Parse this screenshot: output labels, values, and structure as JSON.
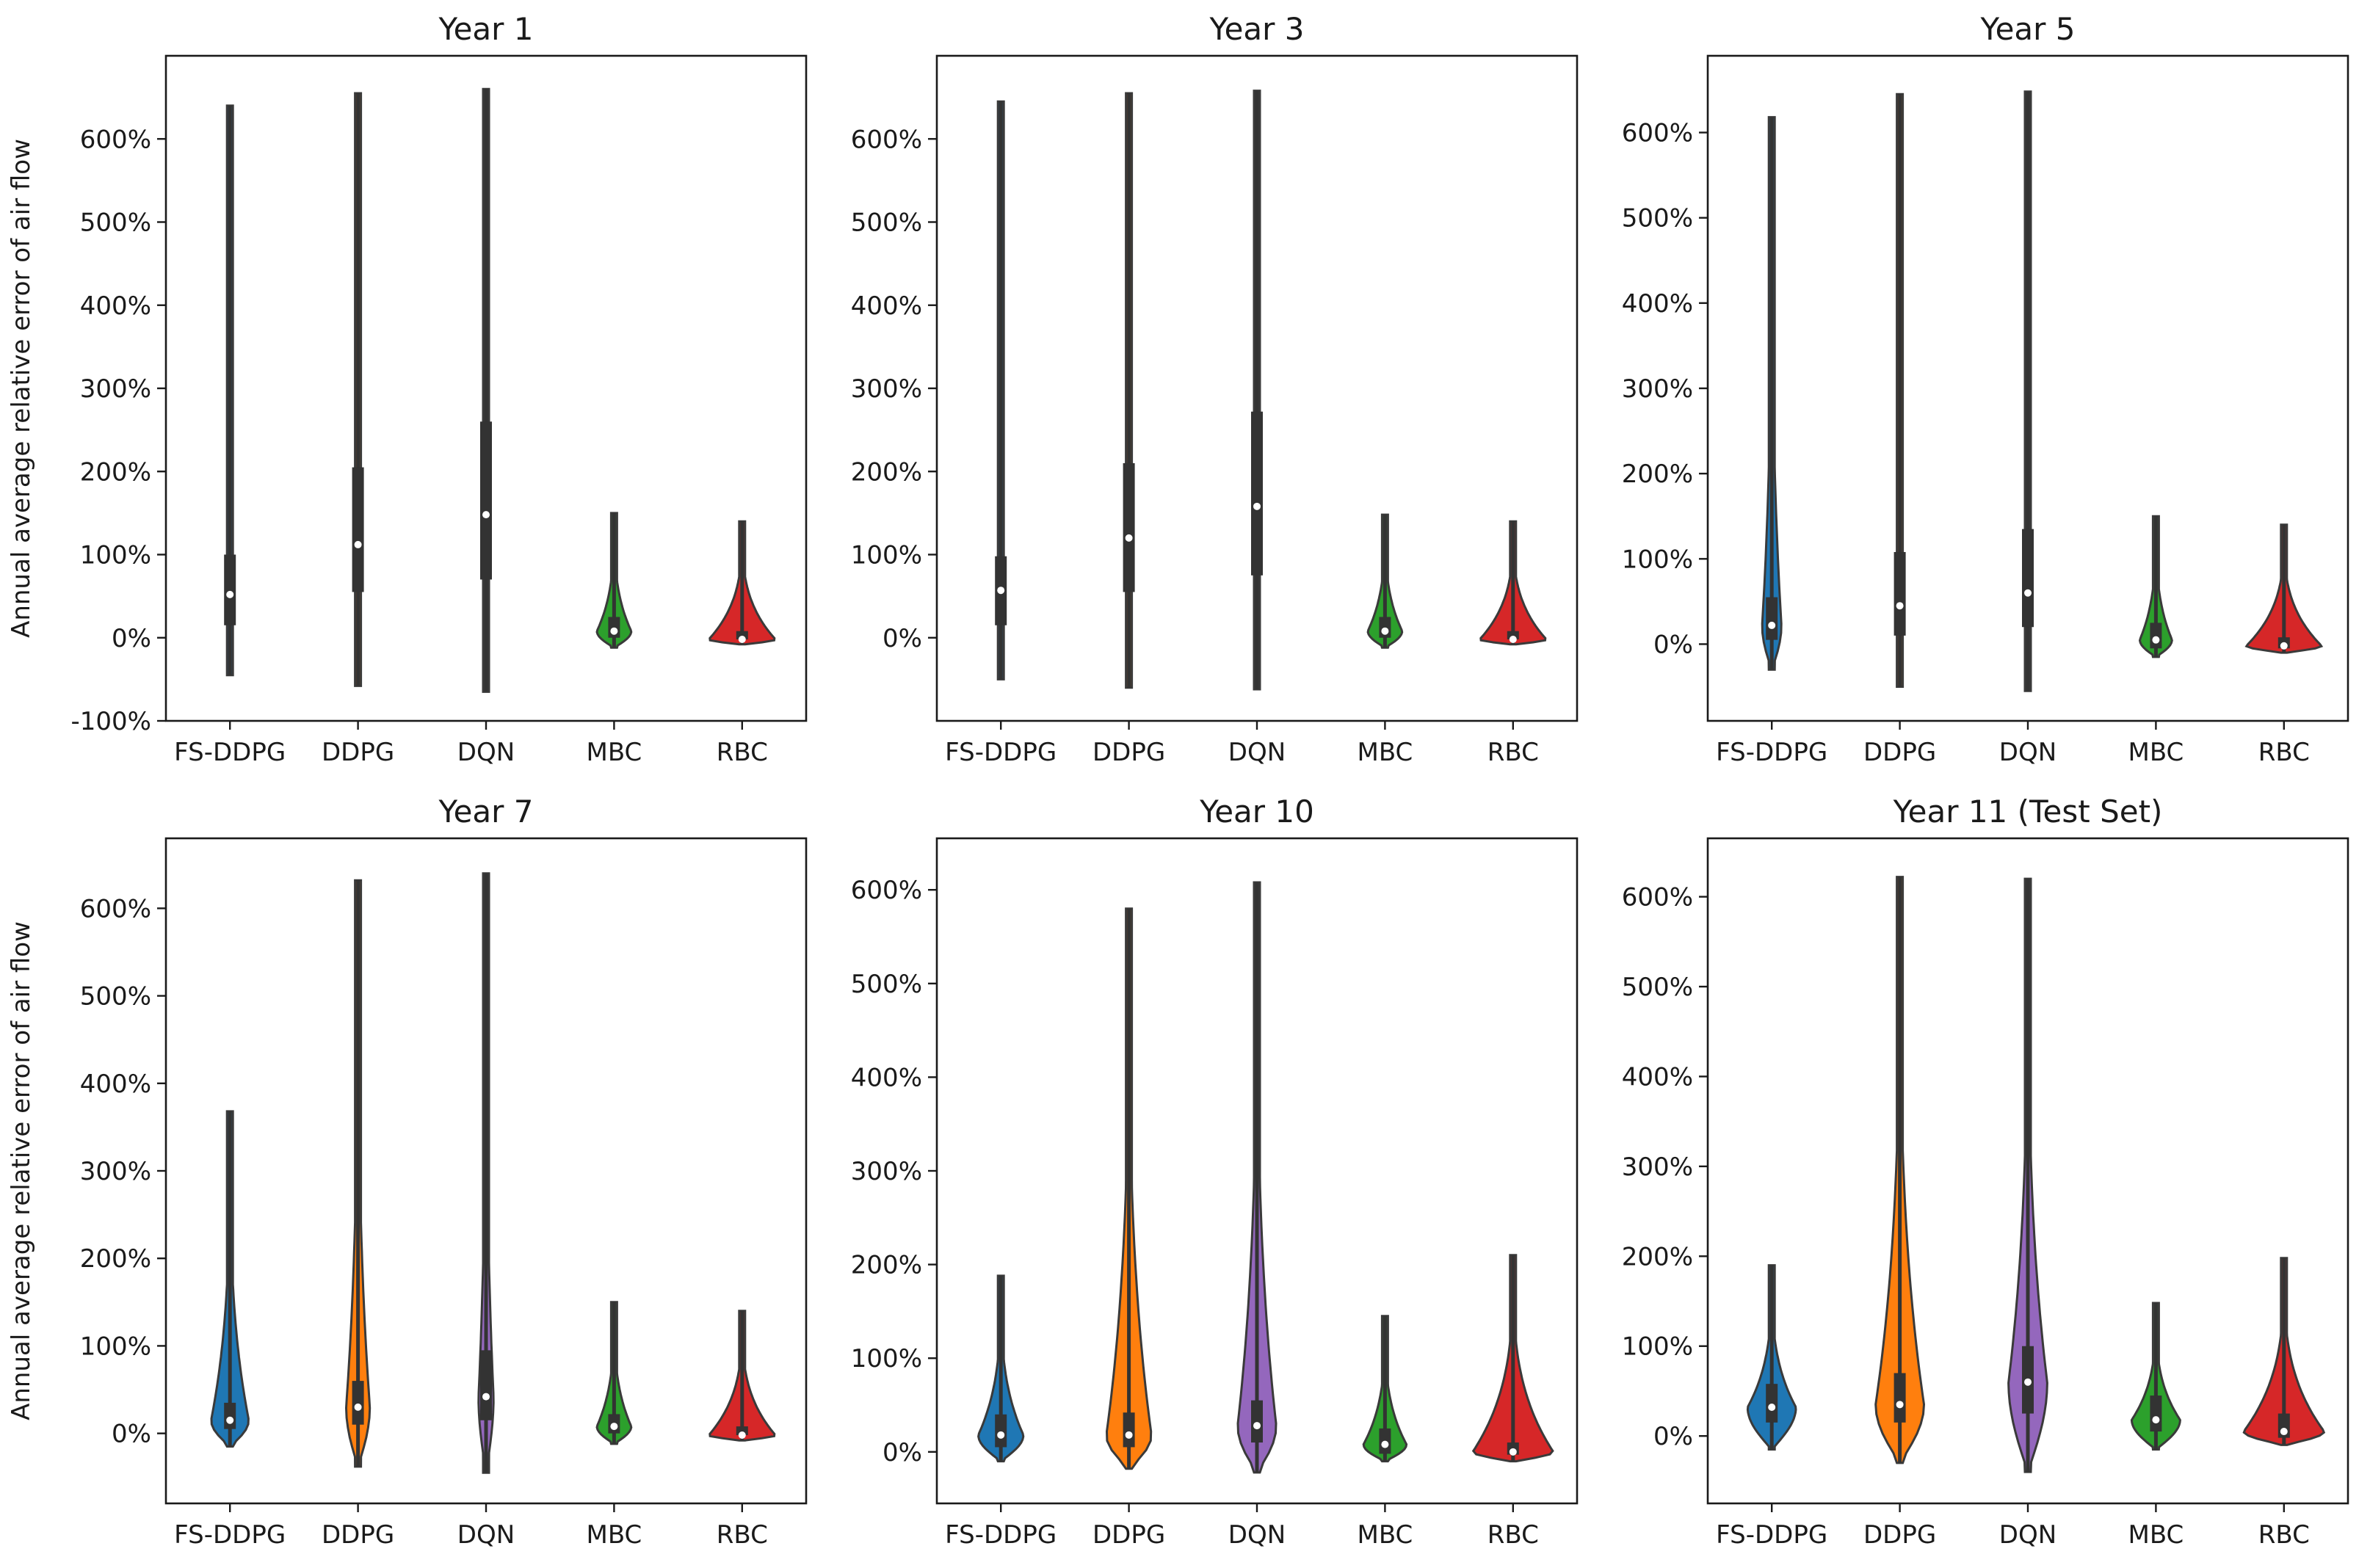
{
  "figure": {
    "ylabel": "Annual average relative error of air flow"
  },
  "chart_data": [
    {
      "type": "violin",
      "title": "Year 1",
      "ylabel": "Annual average relative error of air flow",
      "categories": [
        "FS-DDPG",
        "DDPG",
        "DQN",
        "MBC",
        "RBC"
      ],
      "colors": [
        "#1f77b4",
        "#ff7f0e",
        "#9467bd",
        "#2ca02c",
        "#d62728"
      ],
      "ylim": [
        -100,
        700
      ],
      "yticks": [
        -100,
        0,
        100,
        200,
        300,
        400,
        500,
        600
      ],
      "ytick_labels": [
        "-100%",
        "0%",
        "100%",
        "200%",
        "300%",
        "400%",
        "500%",
        "600%"
      ],
      "series": [
        {
          "name": "FS-DDPG",
          "min": -45,
          "max": 640,
          "q1": 15,
          "median": 52,
          "q3": 100,
          "width": 0.05
        },
        {
          "name": "DDPG",
          "min": -58,
          "max": 655,
          "q1": 55,
          "median": 112,
          "q3": 205,
          "width": 0.04
        },
        {
          "name": "DQN",
          "min": -65,
          "max": 660,
          "q1": 70,
          "median": 148,
          "q3": 260,
          "width": 0.04
        },
        {
          "name": "MBC",
          "min": -12,
          "max": 150,
          "q1": 0,
          "median": 8,
          "q3": 25,
          "width": 0.32
        },
        {
          "name": "RBC",
          "min": -8,
          "max": 140,
          "q1": -2,
          "median": -2,
          "q3": 8,
          "width": 0.62
        }
      ]
    },
    {
      "type": "violin",
      "title": "Year 3",
      "ylabel": "",
      "categories": [
        "FS-DDPG",
        "DDPG",
        "DQN",
        "MBC",
        "RBC"
      ],
      "colors": [
        "#1f77b4",
        "#ff7f0e",
        "#9467bd",
        "#2ca02c",
        "#d62728"
      ],
      "ylim": [
        -100,
        700
      ],
      "yticks": [
        0,
        100,
        200,
        300,
        400,
        500,
        600
      ],
      "ytick_labels": [
        "0%",
        "100%",
        "200%",
        "300%",
        "400%",
        "500%",
        "600%"
      ],
      "series": [
        {
          "name": "FS-DDPG",
          "min": -50,
          "max": 645,
          "q1": 15,
          "median": 57,
          "q3": 98,
          "width": 0.05
        },
        {
          "name": "DDPG",
          "min": -60,
          "max": 655,
          "q1": 55,
          "median": 120,
          "q3": 210,
          "width": 0.04
        },
        {
          "name": "DQN",
          "min": -62,
          "max": 658,
          "q1": 75,
          "median": 158,
          "q3": 272,
          "width": 0.04
        },
        {
          "name": "MBC",
          "min": -12,
          "max": 148,
          "q1": 0,
          "median": 8,
          "q3": 25,
          "width": 0.32
        },
        {
          "name": "RBC",
          "min": -8,
          "max": 140,
          "q1": -2,
          "median": -2,
          "q3": 8,
          "width": 0.62
        }
      ]
    },
    {
      "type": "violin",
      "title": "Year 5",
      "ylabel": "",
      "categories": [
        "FS-DDPG",
        "DDPG",
        "DQN",
        "MBC",
        "RBC"
      ],
      "colors": [
        "#1f77b4",
        "#ff7f0e",
        "#9467bd",
        "#2ca02c",
        "#d62728"
      ],
      "ylim": [
        -90,
        690
      ],
      "yticks": [
        0,
        100,
        200,
        300,
        400,
        500,
        600
      ],
      "ytick_labels": [
        "0%",
        "100%",
        "200%",
        "300%",
        "400%",
        "500%",
        "600%"
      ],
      "series": [
        {
          "name": "FS-DDPG",
          "min": -30,
          "max": 618,
          "q1": 5,
          "median": 22,
          "q3": 55,
          "width": 0.18
        },
        {
          "name": "DDPG",
          "min": -50,
          "max": 645,
          "q1": 10,
          "median": 45,
          "q3": 108,
          "width": 0.06
        },
        {
          "name": "DQN",
          "min": -55,
          "max": 648,
          "q1": 20,
          "median": 60,
          "q3": 135,
          "width": 0.05
        },
        {
          "name": "MBC",
          "min": -15,
          "max": 150,
          "q1": -5,
          "median": 5,
          "q3": 25,
          "width": 0.3
        },
        {
          "name": "RBC",
          "min": -10,
          "max": 140,
          "q1": -5,
          "median": -2,
          "q3": 8,
          "width": 0.7
        }
      ]
    },
    {
      "type": "violin",
      "title": "Year 7",
      "ylabel": "Annual average relative error of air flow",
      "categories": [
        "FS-DDPG",
        "DDPG",
        "DQN",
        "MBC",
        "RBC"
      ],
      "colors": [
        "#1f77b4",
        "#ff7f0e",
        "#9467bd",
        "#2ca02c",
        "#d62728"
      ],
      "ylim": [
        -80,
        680
      ],
      "yticks": [
        0,
        100,
        200,
        300,
        400,
        500,
        600
      ],
      "ytick_labels": [
        "0%",
        "100%",
        "200%",
        "300%",
        "400%",
        "500%",
        "600%"
      ],
      "series": [
        {
          "name": "FS-DDPG",
          "min": -15,
          "max": 368,
          "q1": 5,
          "median": 15,
          "q3": 35,
          "width": 0.35
        },
        {
          "name": "DDPG",
          "min": -38,
          "max": 632,
          "q1": 10,
          "median": 30,
          "q3": 60,
          "width": 0.22
        },
        {
          "name": "DQN",
          "min": -45,
          "max": 640,
          "q1": 15,
          "median": 42,
          "q3": 95,
          "width": 0.14
        },
        {
          "name": "MBC",
          "min": -12,
          "max": 150,
          "q1": 0,
          "median": 8,
          "q3": 22,
          "width": 0.32
        },
        {
          "name": "RBC",
          "min": -8,
          "max": 140,
          "q1": -2,
          "median": -2,
          "q3": 8,
          "width": 0.62
        }
      ]
    },
    {
      "type": "violin",
      "title": "Year 10",
      "ylabel": "",
      "categories": [
        "FS-DDPG",
        "DDPG",
        "DQN",
        "MBC",
        "RBC"
      ],
      "colors": [
        "#1f77b4",
        "#ff7f0e",
        "#9467bd",
        "#2ca02c",
        "#d62728"
      ],
      "ylim": [
        -55,
        655
      ],
      "yticks": [
        0,
        100,
        200,
        300,
        400,
        500,
        600
      ],
      "ytick_labels": [
        "0%",
        "100%",
        "200%",
        "300%",
        "400%",
        "500%",
        "600%"
      ],
      "series": [
        {
          "name": "FS-DDPG",
          "min": -10,
          "max": 188,
          "q1": 5,
          "median": 18,
          "q3": 40,
          "width": 0.42
        },
        {
          "name": "DDPG",
          "min": -18,
          "max": 580,
          "q1": 5,
          "median": 18,
          "q3": 42,
          "width": 0.42
        },
        {
          "name": "DQN",
          "min": -22,
          "max": 608,
          "q1": 10,
          "median": 28,
          "q3": 55,
          "width": 0.36
        },
        {
          "name": "MBC",
          "min": -10,
          "max": 145,
          "q1": -2,
          "median": 8,
          "q3": 25,
          "width": 0.4
        },
        {
          "name": "RBC",
          "min": -10,
          "max": 210,
          "q1": -3,
          "median": 0,
          "q3": 10,
          "width": 0.75
        }
      ]
    },
    {
      "type": "violin",
      "title": "Year 11 (Test Set)",
      "ylabel": "",
      "categories": [
        "FS-DDPG",
        "DDPG",
        "DQN",
        "MBC",
        "RBC"
      ],
      "colors": [
        "#1f77b4",
        "#ff7f0e",
        "#9467bd",
        "#2ca02c",
        "#d62728"
      ],
      "ylim": [
        -75,
        665
      ],
      "yticks": [
        0,
        100,
        200,
        300,
        400,
        500,
        600
      ],
      "ytick_labels": [
        "0%",
        "100%",
        "200%",
        "300%",
        "400%",
        "500%",
        "600%"
      ],
      "series": [
        {
          "name": "FS-DDPG",
          "min": -15,
          "max": 190,
          "q1": 15,
          "median": 32,
          "q3": 58,
          "width": 0.45
        },
        {
          "name": "DDPG",
          "min": -30,
          "max": 622,
          "q1": 15,
          "median": 35,
          "q3": 70,
          "width": 0.45
        },
        {
          "name": "DQN",
          "min": -40,
          "max": 620,
          "q1": 25,
          "median": 60,
          "q3": 100,
          "width": 0.36
        },
        {
          "name": "MBC",
          "min": -15,
          "max": 148,
          "q1": 5,
          "median": 18,
          "q3": 45,
          "width": 0.45
        },
        {
          "name": "RBC",
          "min": -10,
          "max": 198,
          "q1": -2,
          "median": 5,
          "q3": 25,
          "width": 0.75
        }
      ]
    }
  ]
}
